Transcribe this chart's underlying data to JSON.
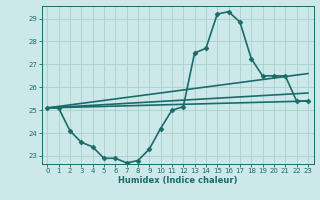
{
  "title": "",
  "xlabel": "Humidex (Indice chaleur)",
  "ylabel": "",
  "xlim": [
    -0.5,
    23.5
  ],
  "ylim": [
    22.65,
    29.55
  ],
  "xticks": [
    0,
    1,
    2,
    3,
    4,
    5,
    6,
    7,
    8,
    9,
    10,
    11,
    12,
    13,
    14,
    15,
    16,
    17,
    18,
    19,
    20,
    21,
    22,
    23
  ],
  "yticks": [
    23,
    24,
    25,
    26,
    27,
    28,
    29
  ],
  "bg_color": "#cde8e8",
  "grid_color": "#aacece",
  "line_color": "#1a6b6b",
  "line_width": 1.2,
  "marker": "D",
  "marker_size": 2.5,
  "main_line": {
    "x": [
      0,
      1,
      2,
      3,
      4,
      5,
      6,
      7,
      8,
      9,
      10,
      11,
      12,
      13,
      14,
      15,
      16,
      17,
      18,
      19,
      20,
      21,
      22,
      23
    ],
    "y": [
      25.1,
      25.1,
      24.1,
      23.6,
      23.4,
      22.9,
      22.9,
      22.7,
      22.8,
      23.3,
      24.2,
      25.0,
      25.15,
      27.5,
      27.7,
      29.2,
      29.3,
      28.85,
      27.25,
      26.5,
      26.5,
      26.5,
      25.4,
      25.4
    ]
  },
  "straight_lines": [
    {
      "x": [
        0,
        23
      ],
      "y": [
        25.1,
        25.4
      ]
    },
    {
      "x": [
        0,
        23
      ],
      "y": [
        25.1,
        26.6
      ]
    },
    {
      "x": [
        0,
        23
      ],
      "y": [
        25.1,
        25.75
      ]
    }
  ]
}
